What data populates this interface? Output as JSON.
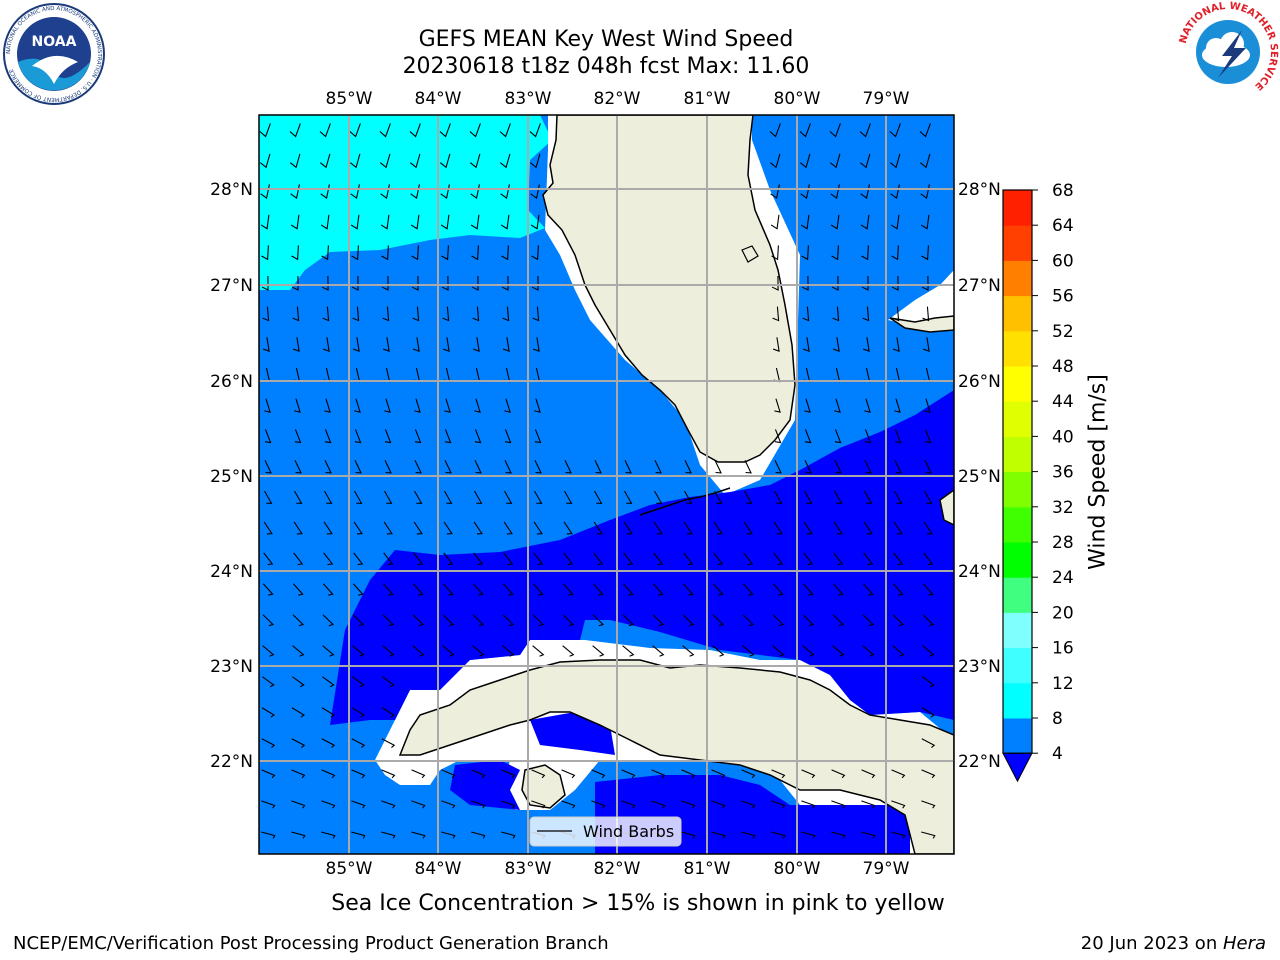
{
  "header": {
    "title_line1": "GEFS MEAN Key West Wind Speed",
    "title_line2": "20230618 t18z 048h fcst   Max: 11.60"
  },
  "logos": {
    "noaa_text": "NOAA",
    "noaa_ring_text": "NATIONAL OCEANIC AND ATMOSPHERIC ADMINISTRATION · U.S. DEPARTMENT OF COMMERCE",
    "nws_ring_text": "NATIONAL WEATHER SERVICE"
  },
  "map": {
    "lon_labels": [
      "85°W",
      "84°W",
      "83°W",
      "82°W",
      "81°W",
      "80°W",
      "79°W"
    ],
    "lat_labels": [
      "28°N",
      "27°N",
      "26°N",
      "25°N",
      "24°N",
      "23°N",
      "22°N"
    ],
    "legend_label": "Wind Barbs",
    "colors": {
      "cyan": "#00ffff",
      "blue": "#0080ff",
      "deep_blue": "#0000ff",
      "land": "#eeeedd"
    }
  },
  "colorbar": {
    "label": "Wind Speed [m/s]",
    "ticks": [
      "4",
      "8",
      "12",
      "16",
      "20",
      "24",
      "28",
      "32",
      "36",
      "40",
      "44",
      "48",
      "52",
      "56",
      "60",
      "64",
      "68"
    ],
    "colors": [
      "#0080ff",
      "#00ffff",
      "#40ffff",
      "#80ffff",
      "#40ff80",
      "#00ff00",
      "#40ff00",
      "#80ff00",
      "#c0ff00",
      "#e0ff00",
      "#ffff00",
      "#ffe000",
      "#ffc000",
      "#ff8000",
      "#ff4000",
      "#ff2000",
      "#ff0000"
    ],
    "under_color": "#0000ff"
  },
  "footer": {
    "caption": "Sea Ice Concentration > 15% is shown in pink to yellow",
    "credit": "NCEP/EMC/Verification Post Processing Product Generation Branch",
    "date": "20 Jun 2023 on ",
    "host": "Hera"
  }
}
